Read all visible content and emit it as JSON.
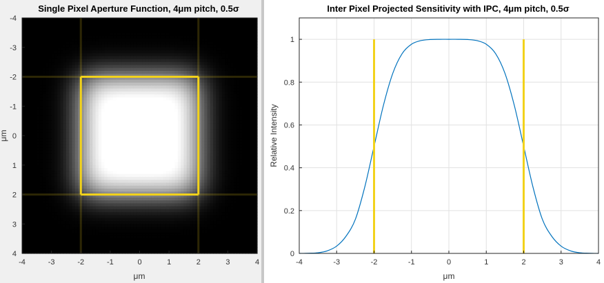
{
  "chart_data": [
    {
      "type": "heatmap",
      "title": "Single Pixel Aperture Function, 4μm pitch, 0.5σ",
      "xlabel": "μm",
      "ylabel": "μm",
      "xlim": [
        -4,
        4
      ],
      "ylim": [
        -4,
        4
      ],
      "y_direction": "reversed",
      "xticks": [
        "-4",
        "-3",
        "-2",
        "-1",
        "0",
        "1",
        "2",
        "3",
        "4"
      ],
      "yticks": [
        "-4",
        "-3",
        "-2",
        "-1",
        "0",
        "1",
        "2",
        "3",
        "4"
      ],
      "pixel_boundary": [
        -2,
        2
      ],
      "aperture_halfwidth": 2,
      "sigma": 0.5,
      "colormap": "gray",
      "overlay_color": "#f2d21b"
    },
    {
      "type": "line",
      "title": "Inter Pixel Projected Sensitivity with IPC, 4μm pitch, 0.5σ",
      "xlabel": "μm",
      "ylabel": "Relative Intensity",
      "xlim": [
        -4,
        4
      ],
      "ylim": [
        0,
        1.1
      ],
      "grid": true,
      "xticks": [
        "-4",
        "-3",
        "-2",
        "-1",
        "0",
        "1",
        "2",
        "3",
        "4"
      ],
      "yticks": [
        "0",
        "0.2",
        "0.4",
        "0.6",
        "0.8",
        "1"
      ],
      "series": [
        {
          "x": [
            -4,
            -3.75,
            -3.5,
            -3.25,
            -3,
            -2.75,
            -2.5,
            -2.25,
            -2,
            -1.75,
            -1.5,
            -1.25,
            -1,
            -0.75,
            -0.5,
            -0.25,
            0,
            0.25,
            0.5,
            0.75,
            1,
            1.25,
            1.5,
            1.75,
            2,
            2.25,
            2.5,
            2.75,
            3,
            3.25,
            3.5,
            3.75,
            4
          ],
          "y": [
            0,
            0.001,
            0.003,
            0.012,
            0.034,
            0.08,
            0.159,
            0.309,
            0.5,
            0.691,
            0.841,
            0.933,
            0.977,
            0.994,
            0.999,
            1,
            1,
            1,
            0.999,
            0.994,
            0.977,
            0.933,
            0.841,
            0.691,
            0.5,
            0.309,
            0.159,
            0.08,
            0.034,
            0.012,
            0.003,
            0.001,
            0
          ],
          "color": "#0072bd"
        }
      ],
      "vlines": [
        -2,
        2
      ],
      "vline_range": [
        0,
        1
      ],
      "vline_color": "#f2d21b"
    }
  ]
}
